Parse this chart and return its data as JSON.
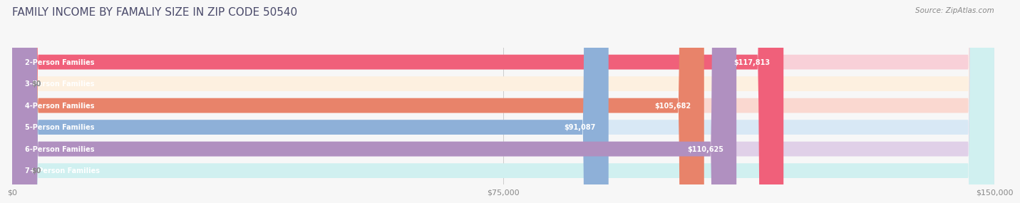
{
  "title": "FAMILY INCOME BY FAMALIY SIZE IN ZIP CODE 50540",
  "source": "Source: ZipAtlas.com",
  "categories": [
    "2-Person Families",
    "3-Person Families",
    "4-Person Families",
    "5-Person Families",
    "6-Person Families",
    "7+ Person Families"
  ],
  "values": [
    117813,
    0,
    105682,
    91087,
    110625,
    0
  ],
  "value_labels": [
    "$117,813",
    "$0",
    "$105,682",
    "$91,087",
    "$110,625",
    "$0"
  ],
  "bar_colors": [
    "#F0607A",
    "#F5C897",
    "#E8836A",
    "#8EB0D8",
    "#B090C0",
    "#90D0D0"
  ],
  "bar_bg_colors": [
    "#F8D0D8",
    "#FDF0E0",
    "#FAD8D0",
    "#D8E8F5",
    "#E0D0E8",
    "#D0F0F0"
  ],
  "xlim": [
    0,
    150000
  ],
  "xticks": [
    0,
    75000,
    150000
  ],
  "xtick_labels": [
    "$0",
    "$75,000",
    "$150,000"
  ],
  "title_fontsize": 11,
  "title_color": "#4a4a6a",
  "source_fontsize": 7.5,
  "source_color": "#888888",
  "label_fontsize": 7.0,
  "value_fontsize": 7.0,
  "bar_height": 0.68,
  "background_color": "#f7f7f7"
}
